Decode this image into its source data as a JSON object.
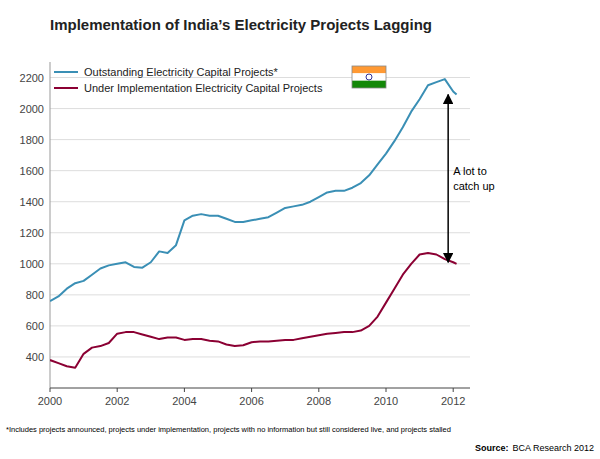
{
  "chart_data": {
    "type": "line",
    "title": "Implementation of India’s Electricity Projects Lagging",
    "x": [
      2000.0,
      2000.25,
      2000.5,
      2000.75,
      2001.0,
      2001.25,
      2001.5,
      2001.75,
      2002.0,
      2002.25,
      2002.5,
      2002.75,
      2003.0,
      2003.25,
      2003.5,
      2003.75,
      2004.0,
      2004.25,
      2004.5,
      2004.75,
      2005.0,
      2005.25,
      2005.5,
      2005.75,
      2006.0,
      2006.25,
      2006.5,
      2006.75,
      2007.0,
      2007.25,
      2007.5,
      2007.75,
      2008.0,
      2008.25,
      2008.5,
      2008.75,
      2009.0,
      2009.25,
      2009.5,
      2009.75,
      2010.0,
      2010.25,
      2010.5,
      2010.75,
      2011.0,
      2011.25,
      2011.5,
      2011.75,
      2012.0,
      2012.1
    ],
    "series": [
      {
        "name": "Outstanding Electricity Capital Projects*",
        "color": "#3a8fb5",
        "values": [
          760,
          790,
          840,
          875,
          890,
          930,
          970,
          990,
          1000,
          1010,
          980,
          975,
          1010,
          1080,
          1070,
          1120,
          1280,
          1310,
          1320,
          1310,
          1310,
          1290,
          1270,
          1270,
          1280,
          1290,
          1300,
          1330,
          1360,
          1370,
          1380,
          1400,
          1430,
          1460,
          1470,
          1470,
          1490,
          1520,
          1570,
          1640,
          1710,
          1790,
          1880,
          1980,
          2060,
          2150,
          2170,
          2190,
          2110,
          2090
        ]
      },
      {
        "name": "Under Implementation Electricity Capital Projects",
        "color": "#8b0033",
        "values": [
          380,
          360,
          340,
          330,
          420,
          460,
          470,
          490,
          550,
          560,
          560,
          545,
          530,
          515,
          525,
          525,
          510,
          515,
          515,
          505,
          500,
          480,
          470,
          475,
          495,
          500,
          500,
          505,
          510,
          510,
          520,
          530,
          540,
          550,
          555,
          560,
          560,
          570,
          600,
          660,
          750,
          840,
          930,
          1000,
          1060,
          1070,
          1060,
          1030,
          1010,
          1000
        ]
      }
    ],
    "xlim": [
      2000,
      2012.5
    ],
    "xticks": [
      2000,
      2002,
      2004,
      2006,
      2008,
      2010,
      2012
    ],
    "ylim": [
      200,
      2300
    ],
    "yticks": [
      400,
      600,
      800,
      1000,
      1200,
      1400,
      1600,
      1800,
      2000,
      2200
    ],
    "grid": true,
    "legend": "upper left",
    "annotations": [
      {
        "text": "A lot to\ncatch up",
        "x": 2011.85,
        "y": 1550,
        "y_from": 2090,
        "y_to": 1010
      }
    ],
    "footnote": "*Includes projects announced, projects under implementation, projects with no information but still considered live, and projects stalled",
    "source_label": "Source:",
    "source": "BCA Research 2012"
  }
}
